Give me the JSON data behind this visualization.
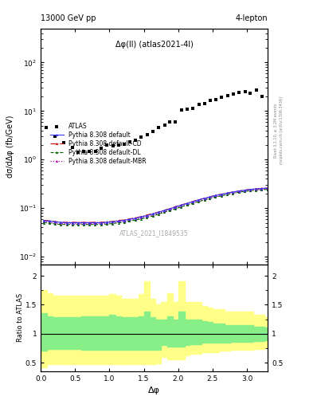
{
  "title_left": "13000 GeV pp",
  "title_right": "4-lepton",
  "annotation": "Δφ(ll) (atlas2021-4l)",
  "watermark": "ATLAS_2021_I1849535",
  "right_label_top": "Rivet 3.1.10, ≥ 3.2M events",
  "right_label_bot": "mcplots.cern.ch [arXiv:1306.3436]",
  "xlabel": "Δφ",
  "ylabel_main": "dσ/dΔφ (fb/GeV)",
  "ylabel_ratio": "Ratio to ATLAS",
  "ylim_main": [
    0.007,
    500
  ],
  "ylim_ratio": [
    0.35,
    2.2
  ],
  "xlim": [
    0.0,
    3.3
  ],
  "atlas_x": [
    0.08,
    0.21,
    0.33,
    0.46,
    0.54,
    0.63,
    0.71,
    0.8,
    0.88,
    0.96,
    1.05,
    1.13,
    1.21,
    1.3,
    1.38,
    1.46,
    1.55,
    1.63,
    1.71,
    1.8,
    1.88,
    1.96,
    2.05,
    2.13,
    2.21,
    2.3,
    2.38,
    2.47,
    2.55,
    2.63,
    2.72,
    2.8,
    2.88,
    2.97,
    3.05,
    3.14,
    3.22
  ],
  "atlas_y": [
    4.5,
    3.0,
    2.2,
    1.8,
    1.4,
    1.5,
    1.5,
    1.5,
    1.7,
    2.0,
    1.9,
    2.0,
    2.1,
    2.3,
    2.5,
    2.9,
    3.2,
    3.8,
    4.5,
    5.2,
    6.0,
    6.0,
    10.5,
    10.8,
    11.5,
    13.5,
    14.5,
    16.5,
    17.5,
    19.5,
    21.0,
    22.0,
    24.0,
    25.0,
    23.0,
    27.0,
    20.0
  ],
  "mc_x": [
    0.04,
    0.13,
    0.21,
    0.29,
    0.38,
    0.46,
    0.54,
    0.63,
    0.71,
    0.79,
    0.88,
    0.96,
    1.04,
    1.13,
    1.21,
    1.29,
    1.38,
    1.46,
    1.54,
    1.63,
    1.71,
    1.79,
    1.88,
    1.96,
    2.04,
    2.13,
    2.21,
    2.29,
    2.38,
    2.46,
    2.54,
    2.63,
    2.71,
    2.79,
    2.88,
    2.96,
    3.04,
    3.13,
    3.21,
    3.3
  ],
  "pythia_default_y": [
    0.055,
    0.054,
    0.052,
    0.051,
    0.05,
    0.05,
    0.05,
    0.05,
    0.05,
    0.05,
    0.05,
    0.051,
    0.052,
    0.054,
    0.056,
    0.059,
    0.062,
    0.066,
    0.07,
    0.076,
    0.082,
    0.089,
    0.097,
    0.106,
    0.115,
    0.125,
    0.136,
    0.147,
    0.159,
    0.17,
    0.182,
    0.193,
    0.204,
    0.214,
    0.225,
    0.234,
    0.242,
    0.249,
    0.254,
    0.258
  ],
  "pythia_cd_y": [
    0.056,
    0.055,
    0.053,
    0.051,
    0.051,
    0.051,
    0.051,
    0.051,
    0.051,
    0.051,
    0.051,
    0.052,
    0.053,
    0.056,
    0.057,
    0.06,
    0.063,
    0.067,
    0.072,
    0.077,
    0.083,
    0.09,
    0.098,
    0.107,
    0.116,
    0.126,
    0.137,
    0.148,
    0.16,
    0.171,
    0.183,
    0.194,
    0.205,
    0.215,
    0.226,
    0.235,
    0.243,
    0.25,
    0.255,
    0.259
  ],
  "pythia_dl_y": [
    0.05,
    0.049,
    0.047,
    0.046,
    0.046,
    0.046,
    0.046,
    0.046,
    0.046,
    0.046,
    0.046,
    0.047,
    0.048,
    0.05,
    0.051,
    0.054,
    0.057,
    0.06,
    0.064,
    0.069,
    0.075,
    0.082,
    0.089,
    0.097,
    0.106,
    0.115,
    0.125,
    0.136,
    0.147,
    0.158,
    0.169,
    0.18,
    0.191,
    0.201,
    0.212,
    0.22,
    0.228,
    0.234,
    0.239,
    0.243
  ],
  "pythia_mbr_y": [
    0.052,
    0.051,
    0.049,
    0.048,
    0.048,
    0.048,
    0.048,
    0.048,
    0.048,
    0.048,
    0.048,
    0.049,
    0.05,
    0.052,
    0.053,
    0.056,
    0.059,
    0.063,
    0.067,
    0.072,
    0.078,
    0.085,
    0.092,
    0.1,
    0.109,
    0.118,
    0.128,
    0.139,
    0.15,
    0.161,
    0.172,
    0.183,
    0.194,
    0.204,
    0.215,
    0.224,
    0.232,
    0.238,
    0.243,
    0.247
  ],
  "ratio_bins_x": [
    0.0,
    0.09,
    0.17,
    0.25,
    0.34,
    0.42,
    0.5,
    0.59,
    0.67,
    0.75,
    0.84,
    0.92,
    1.0,
    1.09,
    1.17,
    1.25,
    1.34,
    1.42,
    1.5,
    1.59,
    1.67,
    1.75,
    1.84,
    1.92,
    2.0,
    2.09,
    2.17,
    2.25,
    2.34,
    2.42,
    2.5,
    2.59,
    2.67,
    2.75,
    2.84,
    2.92,
    3.0,
    3.09,
    3.17,
    3.25,
    3.3
  ],
  "ratio_green_hi": [
    1.35,
    1.3,
    1.28,
    1.28,
    1.28,
    1.28,
    1.28,
    1.3,
    1.3,
    1.3,
    1.3,
    1.3,
    1.32,
    1.3,
    1.28,
    1.28,
    1.28,
    1.3,
    1.38,
    1.28,
    1.25,
    1.25,
    1.3,
    1.25,
    1.38,
    1.25,
    1.25,
    1.25,
    1.22,
    1.2,
    1.18,
    1.18,
    1.15,
    1.15,
    1.15,
    1.15,
    1.15,
    1.12,
    1.12,
    1.1
  ],
  "ratio_green_lo": [
    0.7,
    0.73,
    0.73,
    0.73,
    0.73,
    0.73,
    0.73,
    0.72,
    0.72,
    0.72,
    0.72,
    0.72,
    0.72,
    0.72,
    0.72,
    0.72,
    0.72,
    0.72,
    0.72,
    0.72,
    0.72,
    0.8,
    0.78,
    0.78,
    0.78,
    0.8,
    0.82,
    0.82,
    0.84,
    0.84,
    0.84,
    0.85,
    0.85,
    0.86,
    0.86,
    0.86,
    0.86,
    0.87,
    0.87,
    0.88
  ],
  "ratio_yellow_hi": [
    1.75,
    1.7,
    1.65,
    1.65,
    1.65,
    1.65,
    1.65,
    1.65,
    1.65,
    1.65,
    1.65,
    1.65,
    1.68,
    1.65,
    1.6,
    1.6,
    1.6,
    1.68,
    1.9,
    1.6,
    1.5,
    1.55,
    1.7,
    1.55,
    1.9,
    1.55,
    1.55,
    1.55,
    1.48,
    1.45,
    1.42,
    1.42,
    1.38,
    1.38,
    1.38,
    1.38,
    1.38,
    1.32,
    1.32,
    1.28
  ],
  "ratio_yellow_lo": [
    0.42,
    0.47,
    0.47,
    0.47,
    0.47,
    0.47,
    0.47,
    0.47,
    0.47,
    0.47,
    0.47,
    0.47,
    0.47,
    0.47,
    0.47,
    0.47,
    0.47,
    0.47,
    0.47,
    0.47,
    0.48,
    0.6,
    0.56,
    0.56,
    0.56,
    0.62,
    0.65,
    0.65,
    0.68,
    0.68,
    0.68,
    0.7,
    0.7,
    0.72,
    0.72,
    0.72,
    0.72,
    0.74,
    0.74,
    0.76
  ],
  "color_atlas": "#000000",
  "color_default": "#3333ff",
  "color_cd": "#cc0000",
  "color_dl": "#006600",
  "color_mbr": "#bb00bb",
  "color_green": "#88ee88",
  "color_yellow": "#ffff88"
}
